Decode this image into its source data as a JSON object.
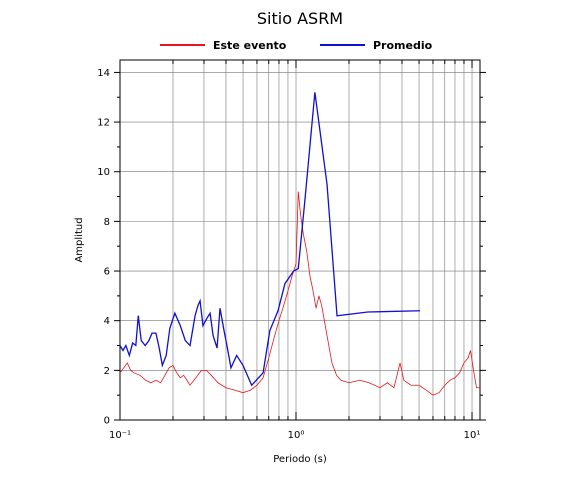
{
  "chart_data": {
    "type": "line",
    "title": "Sitio ASRM",
    "xlabel": "Periodo (s)",
    "ylabel": "Amplitud",
    "log_x": true,
    "grid": true,
    "xlim": [
      0.1,
      11.1
    ],
    "ylim": [
      0,
      14.5
    ],
    "xticks": [
      {
        "value": 0.1,
        "label": "10⁻¹"
      },
      {
        "value": 1,
        "label": "10⁰"
      },
      {
        "value": 10,
        "label": "10¹"
      }
    ],
    "xminorticks": [
      0.2,
      0.3,
      0.4,
      0.5,
      0.6,
      0.7,
      0.8,
      0.9,
      2,
      3,
      4,
      5,
      6,
      7,
      8,
      9
    ],
    "yticks": [
      0,
      2,
      4,
      6,
      8,
      10,
      12,
      14
    ],
    "yminorticks": [
      1,
      3,
      5,
      7,
      9,
      11,
      13
    ],
    "series": [
      {
        "name": "Este evento",
        "color": "#e8161b",
        "x": [
          0.1,
          0.105,
          0.11,
          0.115,
          0.12,
          0.13,
          0.14,
          0.15,
          0.16,
          0.17,
          0.18,
          0.19,
          0.2,
          0.21,
          0.22,
          0.23,
          0.24,
          0.25,
          0.27,
          0.29,
          0.31,
          0.33,
          0.36,
          0.4,
          0.45,
          0.5,
          0.55,
          0.6,
          0.65,
          0.7,
          0.75,
          0.8,
          0.85,
          0.9,
          0.95,
          1.0,
          1.03,
          1.06,
          1.1,
          1.15,
          1.2,
          1.25,
          1.3,
          1.35,
          1.4,
          1.5,
          1.6,
          1.7,
          1.8,
          2.0,
          2.3,
          2.6,
          3.0,
          3.3,
          3.6,
          3.9,
          4.1,
          4.5,
          5,
          5.5,
          6,
          6.5,
          7,
          7.5,
          8,
          8.5,
          9,
          9.5,
          9.8,
          10.2,
          10.6,
          11
        ],
        "values": [
          1.9,
          2.1,
          2.3,
          2.0,
          1.9,
          1.8,
          1.6,
          1.5,
          1.6,
          1.5,
          1.8,
          2.1,
          2.2,
          1.9,
          1.7,
          1.8,
          1.6,
          1.4,
          1.7,
          2.0,
          2.0,
          1.8,
          1.5,
          1.3,
          1.2,
          1.1,
          1.2,
          1.4,
          1.7,
          2.5,
          3.3,
          4.0,
          4.6,
          5.2,
          5.8,
          6.3,
          9.2,
          8.3,
          7.5,
          6.8,
          5.8,
          5.2,
          4.5,
          5.0,
          4.6,
          3.4,
          2.3,
          1.8,
          1.6,
          1.5,
          1.6,
          1.5,
          1.3,
          1.5,
          1.3,
          2.3,
          1.6,
          1.4,
          1.4,
          1.2,
          1.0,
          1.1,
          1.4,
          1.6,
          1.7,
          1.9,
          2.3,
          2.5,
          2.8,
          2.0,
          1.3,
          1.3
        ]
      },
      {
        "name": "Promedio",
        "color": "#1010d0",
        "x": [
          0.1,
          0.104,
          0.108,
          0.113,
          0.118,
          0.123,
          0.127,
          0.132,
          0.139,
          0.146,
          0.152,
          0.16,
          0.167,
          0.174,
          0.183,
          0.192,
          0.205,
          0.22,
          0.235,
          0.25,
          0.267,
          0.277,
          0.285,
          0.296,
          0.312,
          0.325,
          0.338,
          0.356,
          0.37,
          0.39,
          0.405,
          0.427,
          0.46,
          0.5,
          0.56,
          0.65,
          0.71,
          0.79,
          0.866,
          0.97,
          1.03,
          1.125,
          1.28,
          1.5,
          1.71,
          2.56,
          5.06
        ],
        "values": [
          3.0,
          2.8,
          3.0,
          2.6,
          3.1,
          3.0,
          4.2,
          3.2,
          3.0,
          3.2,
          3.5,
          3.5,
          2.9,
          2.2,
          2.6,
          3.7,
          4.3,
          3.8,
          3.2,
          3.0,
          4.2,
          4.6,
          4.8,
          3.8,
          4.1,
          4.3,
          3.4,
          2.9,
          4.5,
          3.6,
          3.0,
          2.1,
          2.6,
          2.2,
          1.4,
          1.9,
          3.6,
          4.4,
          5.5,
          6.0,
          6.1,
          8.9,
          13.2,
          9.5,
          4.2,
          4.35,
          4.4
        ]
      }
    ]
  }
}
